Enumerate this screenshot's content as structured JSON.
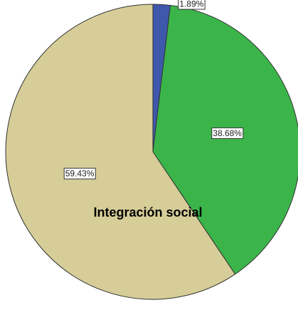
{
  "chart_data": {
    "type": "pie",
    "title": "Integración social",
    "values": [
      1.89,
      38.68,
      59.43
    ],
    "value_labels": [
      "1.89%",
      "38.68%",
      "59.43%"
    ],
    "colors": [
      "#3e58ac",
      "#3bb54a",
      "#d6cd98"
    ]
  }
}
